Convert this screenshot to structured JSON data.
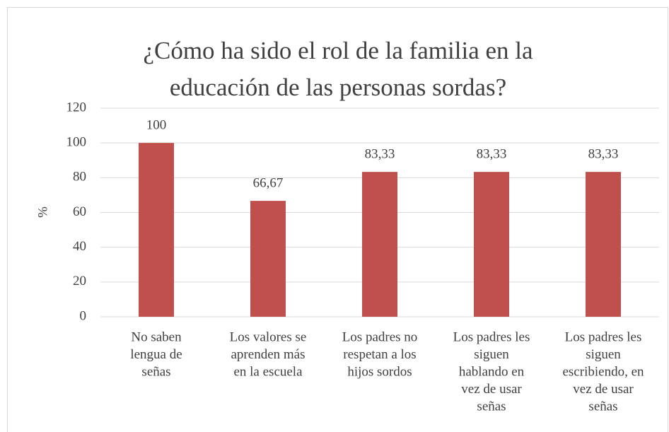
{
  "chart_data": {
    "type": "bar",
    "title": [
      "¿Cómo ha sido el rol de la familia en la",
      "educación de las personas sordas?"
    ],
    "y_label": "%",
    "categories": [
      [
        "No saben",
        "lengua de",
        "señas"
      ],
      [
        "Los valores se",
        "aprenden más",
        "en la escuela"
      ],
      [
        "Los padres no",
        "respetan a los",
        "hijos sordos"
      ],
      [
        "Los padres les",
        "siguen",
        "hablando en",
        "vez de usar",
        "señas"
      ],
      [
        "Los padres les",
        "siguen",
        "escribiendo, en",
        "vez de usar",
        "señas"
      ]
    ],
    "values": [
      100,
      66.67,
      83.33,
      83.33,
      83.33
    ],
    "value_labels": [
      "100",
      "66,67",
      "83,33",
      "83,33",
      "83,33"
    ],
    "color": "#c0504d",
    "ylim": [
      0,
      120
    ],
    "yticks": [
      0,
      20,
      40,
      60,
      80,
      100,
      120
    ],
    "grid": true
  }
}
